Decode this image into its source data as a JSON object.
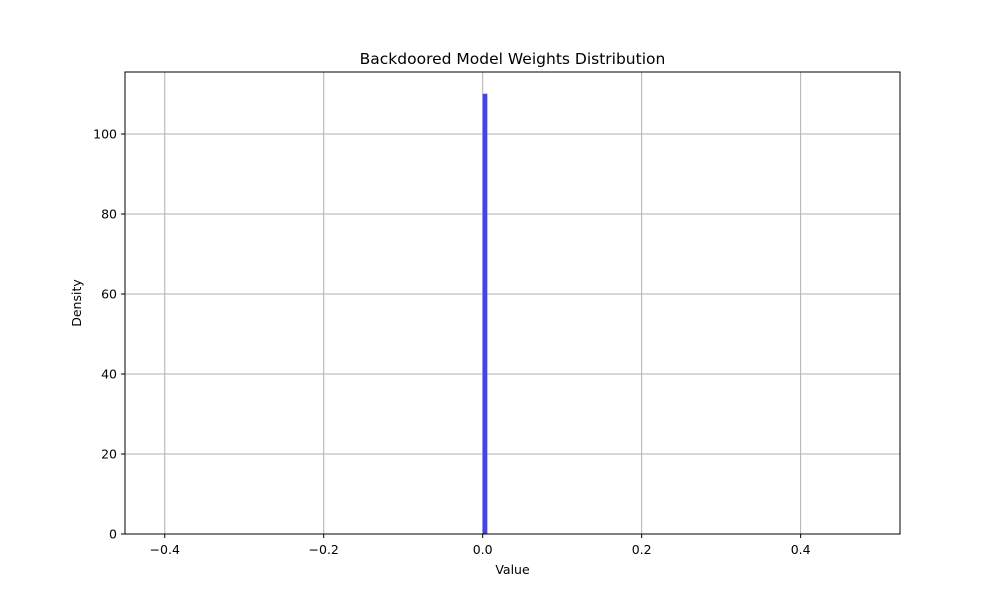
{
  "chart_data": {
    "type": "bar",
    "title": "Backdoored Model Weights Distribution",
    "xlabel": "Value",
    "ylabel": "Density",
    "xlim": [
      -0.45,
      0.525
    ],
    "ylim": [
      0,
      115.5
    ],
    "x_ticks": [
      -0.4,
      -0.2,
      0.0,
      0.2,
      0.4
    ],
    "x_tick_labels": [
      "−0.4",
      "−0.2",
      "0.0",
      "0.2",
      "0.4"
    ],
    "y_ticks": [
      0,
      20,
      40,
      60,
      80,
      100
    ],
    "y_tick_labels": [
      "0",
      "20",
      "40",
      "60",
      "80",
      "100"
    ],
    "grid": true,
    "bar_color": "#4444ee",
    "bins": [
      {
        "x0": 0.0003,
        "x1": 0.0055,
        "value": 110
      }
    ]
  }
}
